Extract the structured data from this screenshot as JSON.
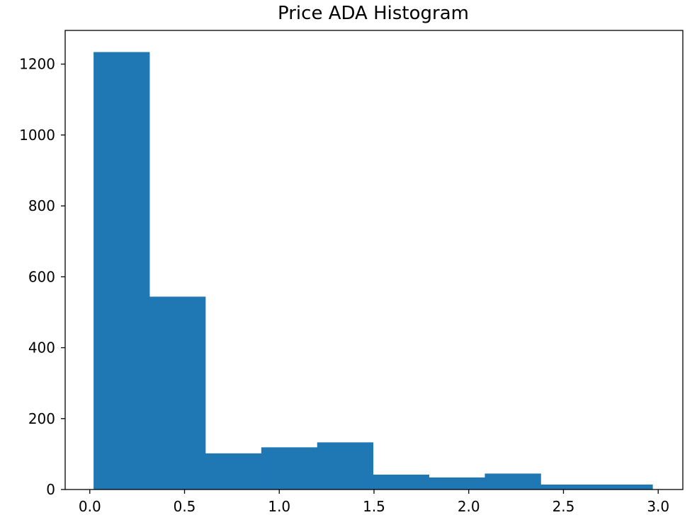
{
  "chart_data": {
    "type": "bar",
    "title": "Price ADA Histogram",
    "xlabel": "",
    "ylabel": "",
    "bin_edges": [
      0.02,
      0.315,
      0.61,
      0.905,
      1.2,
      1.495,
      1.79,
      2.085,
      2.38,
      2.675,
      2.97
    ],
    "values": [
      1234,
      544,
      102,
      119,
      133,
      42,
      34,
      45,
      14,
      14
    ],
    "xlim": [
      -0.13,
      3.13
    ],
    "ylim": [
      0,
      1295
    ],
    "xticks": [
      0.0,
      0.5,
      1.0,
      1.5,
      2.0,
      2.5,
      3.0
    ],
    "xtick_labels": [
      "0.0",
      "0.5",
      "1.0",
      "1.5",
      "2.0",
      "2.5",
      "3.0"
    ],
    "yticks": [
      0,
      200,
      400,
      600,
      800,
      1000,
      1200
    ],
    "ytick_labels": [
      "0",
      "200",
      "400",
      "600",
      "800",
      "1000",
      "1200"
    ],
    "bar_color": "#1f77b4",
    "grid": false,
    "legend": "none"
  }
}
